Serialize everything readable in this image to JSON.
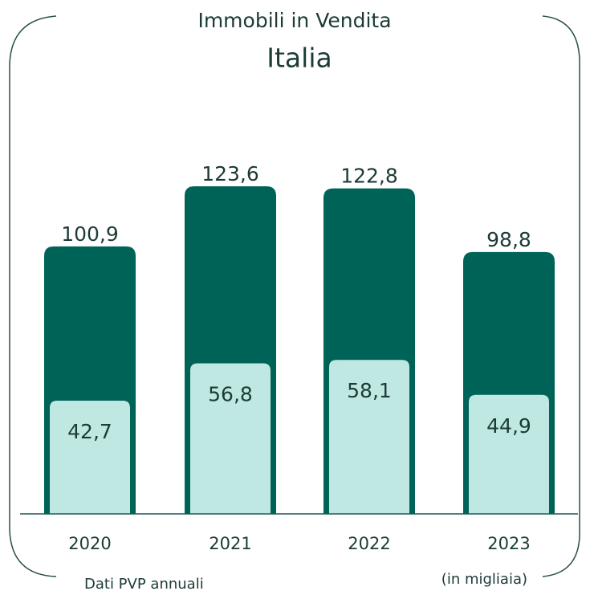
{
  "chart_data": {
    "type": "overlap_bar",
    "title": "Immobili in Vendita",
    "subtitle": "Italia",
    "categories": [
      "2020",
      "2021",
      "2022",
      "2023"
    ],
    "series": [
      {
        "color": "#006358",
        "values": [
          100.9,
          123.6,
          122.8,
          98.8
        ],
        "value_labels": [
          "100,9",
          "123,6",
          "122,8",
          "98,8"
        ]
      },
      {
        "color": "#bfe8e2",
        "values": [
          42.7,
          56.8,
          58.1,
          44.9
        ],
        "value_labels": [
          "42,7",
          "56,8",
          "58,1",
          "44,9"
        ]
      }
    ],
    "footnote_left": "Dati PVP annuali",
    "footnote_right": "(in migliaia)"
  }
}
